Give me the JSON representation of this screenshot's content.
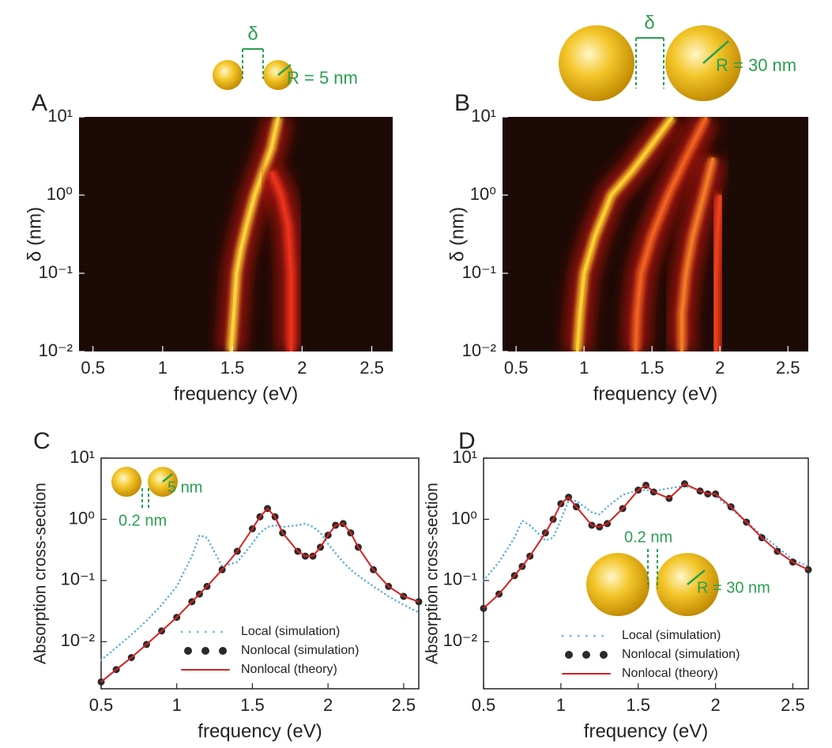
{
  "chart_data": [
    {
      "type": "heatmap",
      "label": "A",
      "x_label": "frequency (eV)",
      "y_label": "δ (nm)",
      "annotations": [
        "δ",
        "R = 5 nm"
      ],
      "xlim": [
        0.4,
        2.65
      ],
      "xticks": [
        0.5,
        1.0,
        1.5,
        2.0,
        2.5
      ],
      "ylim": [
        0.01,
        10
      ],
      "log_y": true,
      "yticks": [
        {
          "value": 0.01,
          "label": "10⁻²"
        },
        {
          "value": 0.1,
          "label": "10⁻¹"
        },
        {
          "value": 1,
          "label": "10⁰"
        },
        {
          "value": 10,
          "label": "10¹"
        }
      ],
      "ridges": [
        {
          "color": "#ffd23a",
          "x": [
            1.49,
            1.51,
            1.53,
            1.56,
            1.6,
            1.66,
            1.72,
            1.78,
            1.83
          ],
          "y": [
            0.01,
            0.03,
            0.1,
            0.2,
            0.4,
            1,
            2,
            4,
            10
          ]
        },
        {
          "color": "#e8321a",
          "x": [
            1.92,
            1.92,
            1.9,
            1.85,
            1.78
          ],
          "y": [
            0.01,
            0.1,
            0.4,
            1,
            2
          ]
        }
      ]
    },
    {
      "type": "heatmap",
      "label": "B",
      "x_label": "frequency (eV)",
      "y_label": "δ (nm)",
      "annotations": [
        "δ",
        "R = 30 nm"
      ],
      "xlim": [
        0.4,
        2.65
      ],
      "xticks": [
        0.5,
        1.0,
        1.5,
        2.0,
        2.5
      ],
      "ylim": [
        0.01,
        10
      ],
      "log_y": true,
      "yticks": [
        {
          "value": 0.01,
          "label": "10⁻²"
        },
        {
          "value": 0.1,
          "label": "10⁻¹"
        },
        {
          "value": 1,
          "label": "10⁰"
        },
        {
          "value": 10,
          "label": "10¹"
        }
      ],
      "ridges": [
        {
          "color": "#ffcf30",
          "x": [
            0.95,
            0.97,
            1.0,
            1.08,
            1.2,
            1.35,
            1.48,
            1.65
          ],
          "y": [
            0.01,
            0.03,
            0.1,
            0.3,
            1,
            2,
            4,
            10
          ]
        },
        {
          "color": "#f06020",
          "x": [
            1.38,
            1.39,
            1.42,
            1.5,
            1.62,
            1.75,
            1.9
          ],
          "y": [
            0.01,
            0.03,
            0.1,
            0.3,
            1,
            3,
            10
          ]
        },
        {
          "color": "#f27a28",
          "x": [
            1.72,
            1.72,
            1.75,
            1.8,
            1.88,
            1.95
          ],
          "y": [
            0.01,
            0.03,
            0.1,
            0.3,
            1,
            3
          ]
        },
        {
          "color": "#e8401a",
          "x": [
            1.97,
            1.97,
            1.98,
            2.0
          ],
          "y": [
            0.01,
            0.1,
            0.3,
            1
          ]
        }
      ]
    },
    {
      "type": "line",
      "label": "C",
      "x_label": "frequency (eV)",
      "y_label": "Absorption cross-section",
      "annotations": [
        "5 nm",
        "0.2 nm"
      ],
      "xlim": [
        0.5,
        2.6
      ],
      "xticks": [
        0.5,
        1.0,
        1.5,
        2.0,
        2.5
      ],
      "ylim": [
        0.0017,
        10
      ],
      "log_y": true,
      "yticks": [
        {
          "value": 0.01,
          "label": "10⁻²"
        },
        {
          "value": 0.1,
          "label": "10⁻¹"
        },
        {
          "value": 1,
          "label": "10⁰"
        },
        {
          "value": 10,
          "label": "10¹"
        }
      ],
      "x": [
        0.5,
        0.6,
        0.7,
        0.8,
        0.9,
        1.0,
        1.1,
        1.15,
        1.2,
        1.3,
        1.4,
        1.5,
        1.55,
        1.6,
        1.65,
        1.7,
        1.8,
        1.85,
        1.9,
        1.95,
        2.0,
        2.05,
        2.1,
        2.15,
        2.2,
        2.3,
        2.4,
        2.5,
        2.6
      ],
      "series": [
        {
          "name": "Local (simulation)",
          "color": "#5aaee0",
          "style": "dotted",
          "values": [
            0.005,
            0.008,
            0.013,
            0.022,
            0.04,
            0.08,
            0.25,
            0.55,
            0.5,
            0.17,
            0.2,
            0.4,
            0.6,
            0.75,
            0.8,
            0.75,
            0.8,
            0.85,
            0.75,
            0.6,
            0.4,
            0.28,
            0.2,
            0.15,
            0.12,
            0.08,
            0.055,
            0.04,
            0.03
          ]
        },
        {
          "name": "Nonlocal (simulation)",
          "color": "#2a2a2a",
          "style": "dots",
          "values": [
            0.0022,
            0.0035,
            0.0055,
            0.009,
            0.015,
            0.025,
            0.045,
            0.06,
            0.08,
            0.15,
            0.3,
            0.7,
            1.1,
            1.5,
            1.1,
            0.6,
            0.3,
            0.25,
            0.25,
            0.35,
            0.55,
            0.8,
            0.85,
            0.6,
            0.35,
            0.15,
            0.08,
            0.055,
            0.045
          ]
        },
        {
          "name": "Nonlocal (theory)",
          "color": "#d62020",
          "style": "solid",
          "values": [
            0.0022,
            0.0035,
            0.0055,
            0.009,
            0.015,
            0.025,
            0.045,
            0.06,
            0.08,
            0.15,
            0.3,
            0.7,
            1.1,
            1.5,
            1.1,
            0.6,
            0.3,
            0.25,
            0.25,
            0.35,
            0.55,
            0.8,
            0.85,
            0.6,
            0.35,
            0.15,
            0.08,
            0.055,
            0.045
          ]
        }
      ]
    },
    {
      "type": "line",
      "label": "D",
      "x_label": "frequency (eV)",
      "y_label": "Absorption cross-section",
      "annotations": [
        "0.2 nm",
        "R = 30 nm"
      ],
      "xlim": [
        0.5,
        2.6
      ],
      "xticks": [
        0.5,
        1.0,
        1.5,
        2.0,
        2.5
      ],
      "ylim": [
        0.0017,
        10
      ],
      "log_y": true,
      "yticks": [
        {
          "value": 0.01,
          "label": "10⁻²"
        },
        {
          "value": 0.1,
          "label": "10⁻¹"
        },
        {
          "value": 1,
          "label": "10⁰"
        },
        {
          "value": 10,
          "label": "10¹"
        }
      ],
      "x": [
        0.5,
        0.6,
        0.7,
        0.75,
        0.8,
        0.9,
        0.95,
        1.0,
        1.05,
        1.1,
        1.2,
        1.25,
        1.3,
        1.4,
        1.5,
        1.55,
        1.6,
        1.7,
        1.8,
        1.9,
        1.95,
        2.0,
        2.1,
        2.2,
        2.3,
        2.4,
        2.5,
        2.6
      ],
      "series": [
        {
          "name": "Local (simulation)",
          "color": "#5aaee0",
          "style": "dotted",
          "values": [
            0.1,
            0.2,
            0.5,
            0.95,
            0.8,
            0.45,
            0.5,
            1.0,
            2.0,
            2.0,
            1.3,
            1.2,
            1.6,
            2.5,
            3.0,
            3.0,
            2.9,
            3.2,
            3.5,
            3.0,
            2.6,
            2.4,
            1.5,
            0.9,
            0.55,
            0.35,
            0.22,
            0.17
          ]
        },
        {
          "name": "Nonlocal (simulation)",
          "color": "#2a2a2a",
          "style": "dots",
          "values": [
            0.035,
            0.06,
            0.12,
            0.17,
            0.25,
            0.6,
            1.0,
            1.8,
            2.3,
            1.6,
            0.8,
            0.75,
            0.85,
            1.5,
            3.0,
            3.6,
            2.8,
            2.2,
            3.8,
            2.9,
            2.6,
            2.6,
            1.6,
            0.9,
            0.5,
            0.3,
            0.2,
            0.15
          ]
        },
        {
          "name": "Nonlocal (theory)",
          "color": "#d62020",
          "style": "solid",
          "values": [
            0.035,
            0.06,
            0.12,
            0.17,
            0.25,
            0.6,
            1.0,
            1.8,
            2.3,
            1.6,
            0.8,
            0.75,
            0.85,
            1.5,
            3.0,
            3.6,
            2.8,
            2.2,
            3.8,
            2.9,
            2.6,
            2.6,
            1.6,
            0.9,
            0.5,
            0.3,
            0.2,
            0.15
          ]
        }
      ]
    }
  ]
}
